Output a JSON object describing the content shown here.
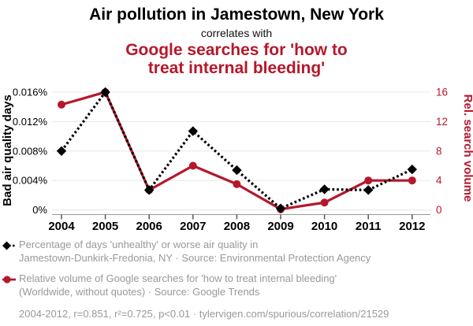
{
  "header": {
    "title": "Air pollution in Jamestown, New York",
    "subtitle": "correlates with",
    "correlate_title": "Google searches for 'how to treat internal bleeding'",
    "correlate_lines": [
      "Google searches for 'how to",
      "treat internal bleeding'"
    ]
  },
  "chart_data": {
    "type": "line",
    "x": [
      2004,
      2005,
      2006,
      2007,
      2008,
      2009,
      2010,
      2011,
      2012
    ],
    "series": [
      {
        "name": "Percentage of days 'unhealthy' or worse air quality in Jamestown-Dunkirk-Fredonia, NY",
        "short_name": "Bad air quality days",
        "axis": "left",
        "color": "#000000",
        "line_style": "dashed",
        "marker": "diamond",
        "values": [
          0.008,
          0.016,
          0.0027,
          0.0107,
          0.0054,
          0.0002,
          0.0028,
          0.0027,
          0.0055
        ]
      },
      {
        "name": "Relative volume of Google searches for 'how to treat internal bleeding'",
        "short_name": "Rel. search volume",
        "axis": "right",
        "color": "#b5182b",
        "line_style": "solid",
        "marker": "circle",
        "values": [
          14.3,
          16,
          2.7,
          6,
          3.5,
          0.1,
          1,
          4,
          4
        ]
      }
    ],
    "left_axis": {
      "label": "Bad air quality days",
      "tick_values": [
        0,
        0.004,
        0.008,
        0.012,
        0.016
      ],
      "tick_labels": [
        "0%",
        "0.004%",
        "0.008%",
        "0.012%",
        "0.016%"
      ],
      "range": [
        0,
        0.016
      ],
      "color": "#000000"
    },
    "right_axis": {
      "label": "Rel. search volume",
      "tick_values": [
        0,
        4,
        8,
        12,
        16
      ],
      "tick_labels": [
        "0",
        "4",
        "8",
        "12",
        "16"
      ],
      "range": [
        0,
        16
      ],
      "color": "#b5182b"
    },
    "grid": true,
    "legend_position": "bottom",
    "title": "Air pollution in Jamestown, New York correlates with Google searches for 'how to treat internal bleeding'"
  },
  "legend": {
    "items": [
      {
        "marker": "black-diamond-dashed",
        "lines": [
          "Percentage of days 'unhealthy' or worse air quality in",
          "Jamestown-Dunkirk-Fredonia, NY · Source: Environmental Protection Agency"
        ]
      },
      {
        "marker": "red-circle-solid",
        "lines": [
          "Relative volume of Google searches for 'how to treat internal bleeding'",
          "(Worldwide, without quotes) · Source: Google Trends"
        ]
      }
    ],
    "footer": "2004-2012, r=0.851, r²=0.725, p<0.01 · tylervigen.com/spurious/correlation/21529"
  },
  "colors": {
    "accent_red": "#b5182b",
    "text_black": "#000000",
    "text_gray": "#999999",
    "grid": "#e8e8e8",
    "axis_line": "#9a9a9a",
    "tick": "#555555"
  }
}
